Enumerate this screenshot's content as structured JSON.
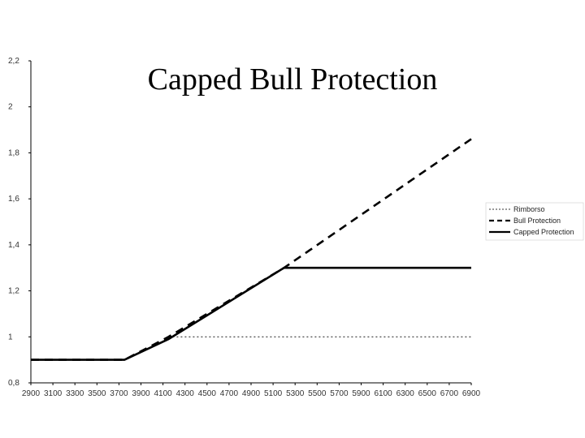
{
  "chart_data": {
    "type": "line",
    "title": "Capped Bull Protection",
    "xlabel": "",
    "ylabel": "",
    "x": [
      2900,
      3100,
      3300,
      3500,
      3700,
      3900,
      4100,
      4300,
      4500,
      4700,
      4900,
      5100,
      5300,
      5500,
      5700,
      5900,
      6100,
      6300,
      6500,
      6700,
      6900
    ],
    "y_ticks": [
      0.8,
      1,
      1.2,
      1.4,
      1.6,
      1.8,
      2,
      2.2
    ],
    "y_tick_labels": [
      "0,8",
      "1",
      "1,2",
      "1,4",
      "1,6",
      "1,8",
      "2",
      "2,2"
    ],
    "ylim": [
      0.8,
      2.2
    ],
    "xlim": [
      2900,
      6900
    ],
    "grid": false,
    "legend_position": "right",
    "series": [
      {
        "name": "Rimborso",
        "style": "dotted",
        "color": "#333333",
        "points": [
          [
            4150,
            1.0
          ],
          [
            6900,
            1.0
          ]
        ]
      },
      {
        "name": "Bull Protection",
        "style": "dashed",
        "color": "#000000",
        "points": [
          [
            2900,
            0.9
          ],
          [
            3750,
            0.9
          ],
          [
            4150,
            1.0
          ],
          [
            5200,
            1.3
          ],
          [
            6900,
            1.86
          ]
        ]
      },
      {
        "name": "Capped Protection",
        "style": "solid",
        "color": "#000000",
        "points": [
          [
            2900,
            0.9
          ],
          [
            3750,
            0.9
          ],
          [
            4150,
            0.99
          ],
          [
            5200,
            1.3
          ],
          [
            6900,
            1.3
          ]
        ]
      }
    ]
  }
}
